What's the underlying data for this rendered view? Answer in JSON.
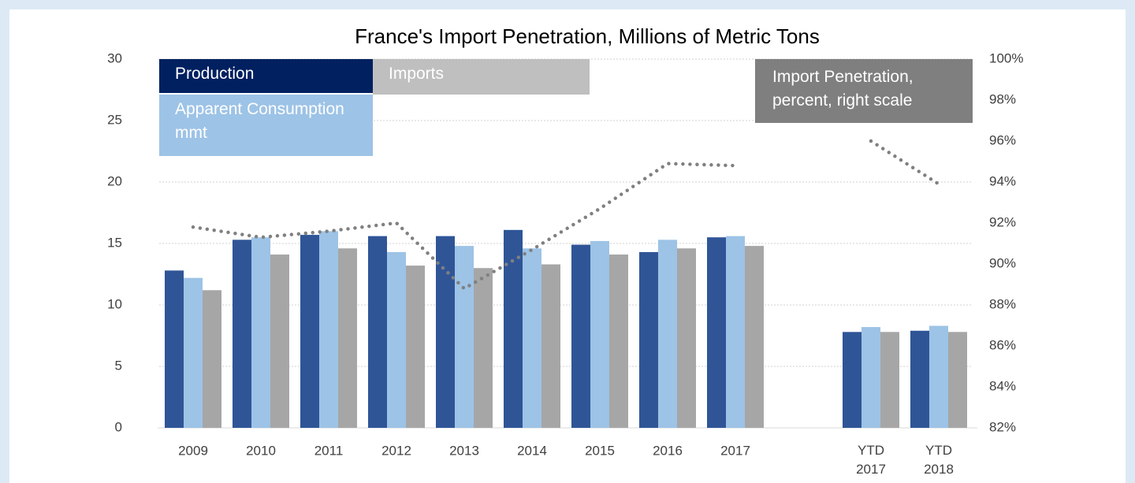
{
  "chart_data": {
    "type": "bar",
    "title": "France's Import Penetration, Millions of Metric Tons",
    "categories": [
      "2009",
      "2010",
      "2011",
      "2012",
      "2013",
      "2014",
      "2015",
      "2016",
      "2017",
      null,
      "YTD 2017",
      "YTD 2018"
    ],
    "series": [
      {
        "name": "Production",
        "color": "#2f5597",
        "values": [
          12.8,
          15.3,
          15.7,
          15.6,
          15.6,
          16.1,
          14.9,
          14.3,
          15.5,
          null,
          7.8,
          7.9
        ]
      },
      {
        "name": "Apparent Consumption mmt",
        "color": "#9dc3e6",
        "values": [
          12.2,
          15.5,
          16.0,
          14.3,
          14.8,
          14.6,
          15.2,
          15.3,
          15.6,
          null,
          8.2,
          8.3
        ]
      },
      {
        "name": "Imports",
        "color": "#a6a6a6",
        "values": [
          11.2,
          14.1,
          14.6,
          13.2,
          13.0,
          13.3,
          14.1,
          14.6,
          14.8,
          null,
          7.8,
          7.8
        ]
      },
      {
        "name": "Import Penetration, percent, right scale",
        "color": "#808080",
        "type": "line",
        "axis": "y2",
        "values": [
          91.8,
          91.3,
          91.6,
          92.0,
          88.8,
          90.7,
          92.7,
          94.9,
          94.8,
          null,
          96.0,
          93.9
        ]
      }
    ],
    "ylim": [
      0,
      30
    ],
    "yticks": [
      0,
      5,
      10,
      15,
      20,
      25,
      30
    ],
    "y2lim": [
      82,
      100
    ],
    "y2ticks": [
      {
        "value": 82,
        "label": "82%"
      },
      {
        "value": 84,
        "label": "84%"
      },
      {
        "value": 86,
        "label": "86%"
      },
      {
        "value": 88,
        "label": "88%"
      },
      {
        "value": 90,
        "label": "90%"
      },
      {
        "value": 92,
        "label": "92%"
      },
      {
        "value": 94,
        "label": "94%"
      },
      {
        "value": 96,
        "label": "96%"
      },
      {
        "value": 98,
        "label": "98%"
      },
      {
        "value": 100,
        "label": "100%"
      }
    ],
    "grid": true
  }
}
